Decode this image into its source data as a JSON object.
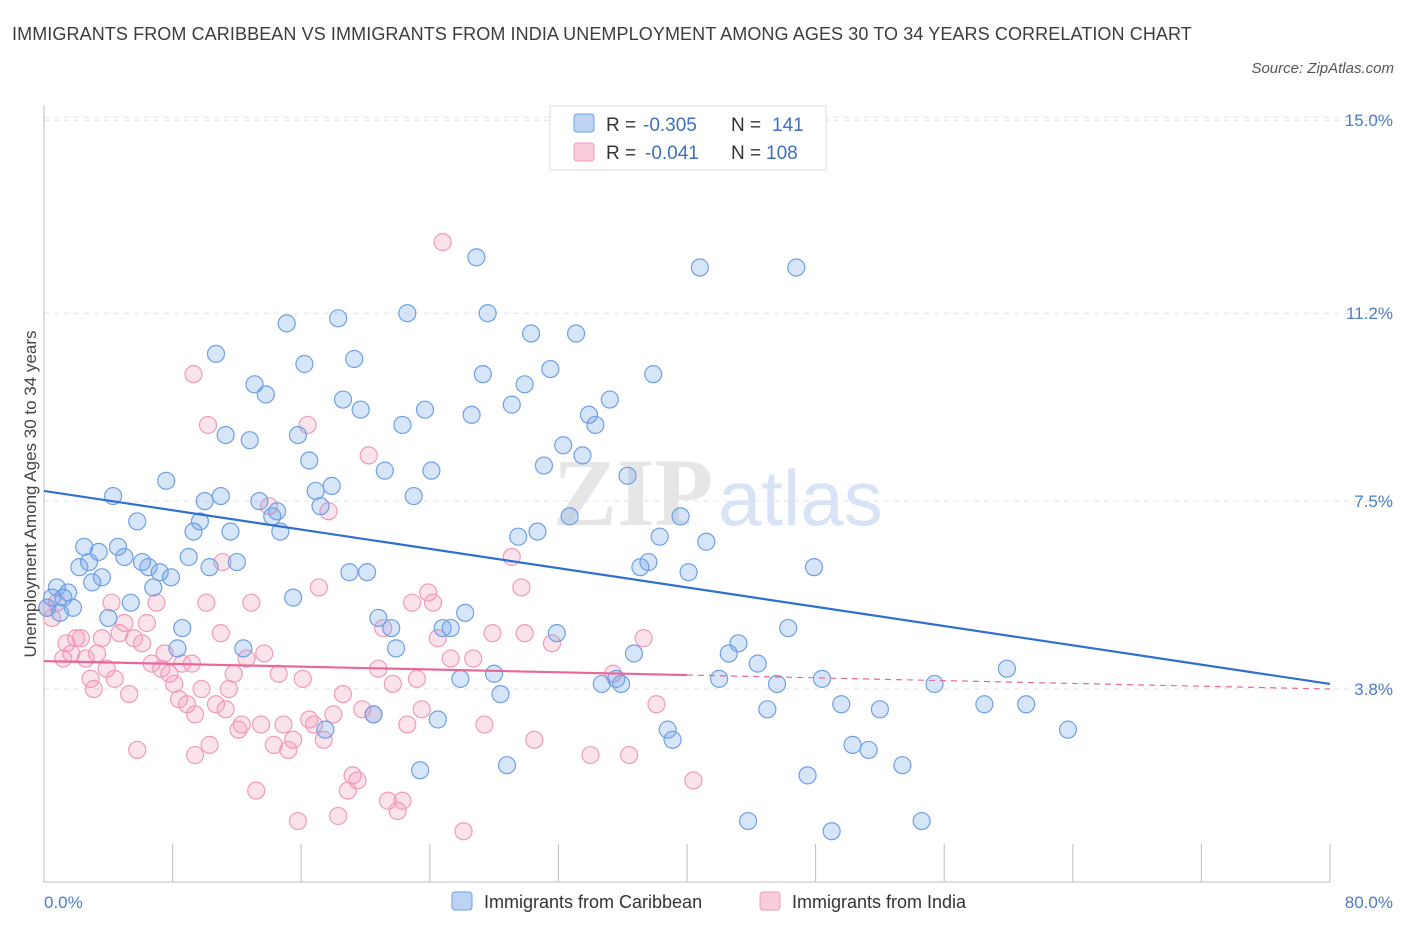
{
  "title": "IMMIGRANTS FROM CARIBBEAN VS IMMIGRANTS FROM INDIA UNEMPLOYMENT AMONG AGES 30 TO 34 YEARS CORRELATION CHART",
  "source": "Source: ZipAtlas.com",
  "watermark": {
    "zip": "ZIP",
    "atlas": "atlas"
  },
  "colors": {
    "caribbean": "#6ea0e6",
    "caribbean_line": "#2f6fd0",
    "india": "#f19ab9",
    "india_line": "#e8679a",
    "tick": "#4a7cc9"
  },
  "legend": {
    "rows": [
      {
        "r_label": "R =",
        "r_value": "-0.305",
        "n_label": "N =",
        "n_value": "141"
      },
      {
        "r_label": "R =",
        "r_value": "-0.041",
        "n_label": "N =",
        "n_value": "108"
      }
    ]
  },
  "chart_data": {
    "type": "scatter",
    "xlabel": "",
    "ylabel": "Unemployment Among Ages 30 to 34 years",
    "xlim": [
      0,
      80
    ],
    "ylim": [
      0,
      15.3
    ],
    "x_tick_labels": [
      "0.0%",
      "80.0%"
    ],
    "y_ticks": [
      3.8,
      7.5,
      11.2,
      15.0
    ],
    "y_tick_labels": [
      "3.8%",
      "7.5%",
      "11.2%",
      "15.0%"
    ],
    "grid": true,
    "series": [
      {
        "name": "Immigrants from Caribbean",
        "r": -0.305,
        "n": 141,
        "trend": {
          "x": [
            0,
            80
          ],
          "y": [
            7.7,
            3.9
          ]
        },
        "points": [
          [
            0.2,
            5.4
          ],
          [
            0.5,
            5.6
          ],
          [
            0.8,
            5.8
          ],
          [
            1.0,
            5.3
          ],
          [
            1.2,
            5.6
          ],
          [
            1.5,
            5.7
          ],
          [
            1.8,
            5.4
          ],
          [
            2.2,
            6.2
          ],
          [
            2.5,
            6.6
          ],
          [
            2.8,
            6.3
          ],
          [
            3.0,
            5.9
          ],
          [
            3.4,
            6.5
          ],
          [
            3.6,
            6.0
          ],
          [
            4.0,
            5.2
          ],
          [
            4.3,
            7.6
          ],
          [
            4.6,
            6.6
          ],
          [
            5.0,
            6.4
          ],
          [
            5.4,
            5.5
          ],
          [
            5.8,
            7.1
          ],
          [
            6.1,
            6.3
          ],
          [
            6.5,
            6.2
          ],
          [
            6.8,
            5.8
          ],
          [
            7.2,
            6.1
          ],
          [
            7.6,
            7.9
          ],
          [
            7.9,
            6.0
          ],
          [
            8.3,
            4.6
          ],
          [
            8.6,
            5.0
          ],
          [
            9.0,
            6.4
          ],
          [
            9.3,
            6.9
          ],
          [
            9.7,
            7.1
          ],
          [
            10.0,
            7.5
          ],
          [
            10.3,
            6.2
          ],
          [
            10.7,
            10.4
          ],
          [
            11.0,
            7.6
          ],
          [
            11.3,
            8.8
          ],
          [
            11.6,
            6.9
          ],
          [
            12.0,
            6.3
          ],
          [
            12.4,
            4.6
          ],
          [
            12.8,
            8.7
          ],
          [
            13.1,
            9.8
          ],
          [
            13.4,
            7.5
          ],
          [
            13.8,
            9.6
          ],
          [
            14.2,
            7.2
          ],
          [
            14.5,
            7.3
          ],
          [
            14.7,
            6.9
          ],
          [
            15.1,
            11.0
          ],
          [
            15.5,
            5.6
          ],
          [
            15.8,
            8.8
          ],
          [
            16.2,
            10.2
          ],
          [
            16.5,
            8.3
          ],
          [
            16.9,
            7.7
          ],
          [
            17.2,
            7.4
          ],
          [
            17.5,
            3.0
          ],
          [
            17.9,
            7.8
          ],
          [
            18.3,
            11.1
          ],
          [
            18.6,
            9.5
          ],
          [
            19.0,
            6.1
          ],
          [
            19.3,
            10.3
          ],
          [
            19.7,
            9.3
          ],
          [
            20.1,
            6.1
          ],
          [
            20.5,
            3.3
          ],
          [
            20.8,
            5.2
          ],
          [
            21.2,
            8.1
          ],
          [
            21.6,
            5.0
          ],
          [
            21.9,
            4.6
          ],
          [
            22.3,
            9.0
          ],
          [
            22.6,
            11.2
          ],
          [
            23.0,
            7.6
          ],
          [
            23.4,
            2.2
          ],
          [
            23.7,
            9.3
          ],
          [
            24.1,
            8.1
          ],
          [
            24.5,
            3.2
          ],
          [
            24.8,
            5.0
          ],
          [
            25.3,
            5.0
          ],
          [
            25.9,
            4.0
          ],
          [
            26.2,
            5.3
          ],
          [
            26.6,
            9.2
          ],
          [
            26.9,
            12.3
          ],
          [
            27.3,
            10.0
          ],
          [
            27.6,
            11.2
          ],
          [
            28.0,
            4.1
          ],
          [
            28.4,
            3.7
          ],
          [
            28.8,
            2.3
          ],
          [
            29.1,
            9.4
          ],
          [
            29.5,
            6.8
          ],
          [
            29.9,
            9.8
          ],
          [
            30.3,
            10.8
          ],
          [
            30.7,
            6.9
          ],
          [
            31.1,
            8.2
          ],
          [
            31.5,
            10.1
          ],
          [
            31.9,
            4.9
          ],
          [
            32.3,
            8.6
          ],
          [
            32.7,
            7.2
          ],
          [
            33.1,
            10.8
          ],
          [
            33.5,
            8.4
          ],
          [
            33.9,
            9.2
          ],
          [
            34.3,
            9.0
          ],
          [
            34.7,
            3.9
          ],
          [
            35.2,
            9.5
          ],
          [
            35.6,
            4.0
          ],
          [
            35.9,
            3.9
          ],
          [
            36.3,
            8.0
          ],
          [
            36.7,
            4.5
          ],
          [
            37.1,
            6.2
          ],
          [
            37.6,
            6.3
          ],
          [
            37.9,
            10.0
          ],
          [
            38.3,
            6.8
          ],
          [
            38.8,
            3.0
          ],
          [
            39.1,
            2.8
          ],
          [
            39.6,
            7.2
          ],
          [
            40.1,
            6.1
          ],
          [
            40.8,
            12.1
          ],
          [
            41.2,
            6.7
          ],
          [
            42.0,
            4.0
          ],
          [
            42.6,
            4.5
          ],
          [
            43.2,
            4.7
          ],
          [
            43.8,
            1.2
          ],
          [
            44.4,
            4.3
          ],
          [
            45.0,
            3.4
          ],
          [
            45.6,
            3.9
          ],
          [
            46.3,
            5.0
          ],
          [
            46.8,
            12.1
          ],
          [
            47.5,
            2.1
          ],
          [
            47.9,
            6.2
          ],
          [
            48.4,
            4.0
          ],
          [
            49.0,
            1.0
          ],
          [
            49.6,
            3.5
          ],
          [
            50.3,
            2.7
          ],
          [
            51.3,
            2.6
          ],
          [
            52.0,
            3.4
          ],
          [
            53.4,
            2.3
          ],
          [
            54.6,
            1.2
          ],
          [
            55.4,
            3.9
          ],
          [
            58.5,
            3.5
          ],
          [
            59.9,
            4.2
          ],
          [
            61.1,
            3.5
          ],
          [
            63.7,
            3.0
          ]
        ]
      },
      {
        "name": "Immigrants from India",
        "r": -0.041,
        "n": 108,
        "trend": {
          "x": [
            0,
            80
          ],
          "y": [
            4.35,
            3.8
          ]
        },
        "trend_solid_to_x": 40,
        "points": [
          [
            0.2,
            5.4
          ],
          [
            0.5,
            5.2
          ],
          [
            0.8,
            5.5
          ],
          [
            1.2,
            4.4
          ],
          [
            1.4,
            4.7
          ],
          [
            1.7,
            4.5
          ],
          [
            2.0,
            4.8
          ],
          [
            2.3,
            4.8
          ],
          [
            2.6,
            4.4
          ],
          [
            2.9,
            4.0
          ],
          [
            3.1,
            3.8
          ],
          [
            3.3,
            4.5
          ],
          [
            3.6,
            4.8
          ],
          [
            3.9,
            4.2
          ],
          [
            4.2,
            5.5
          ],
          [
            4.4,
            4.0
          ],
          [
            4.7,
            4.9
          ],
          [
            5.0,
            5.1
          ],
          [
            5.3,
            3.7
          ],
          [
            5.6,
            4.8
          ],
          [
            5.8,
            2.6
          ],
          [
            6.1,
            4.7
          ],
          [
            6.4,
            5.1
          ],
          [
            6.7,
            4.3
          ],
          [
            7.0,
            5.5
          ],
          [
            7.3,
            4.2
          ],
          [
            7.5,
            4.5
          ],
          [
            7.8,
            4.1
          ],
          [
            8.1,
            3.9
          ],
          [
            8.4,
            3.6
          ],
          [
            8.6,
            4.3
          ],
          [
            8.9,
            3.5
          ],
          [
            9.2,
            4.3
          ],
          [
            9.4,
            3.3
          ],
          [
            9.8,
            3.8
          ],
          [
            10.1,
            5.5
          ],
          [
            10.3,
            2.7
          ],
          [
            10.7,
            3.5
          ],
          [
            11.0,
            4.9
          ],
          [
            11.3,
            3.4
          ],
          [
            11.5,
            3.8
          ],
          [
            11.8,
            4.1
          ],
          [
            12.1,
            3.0
          ],
          [
            12.3,
            3.1
          ],
          [
            12.6,
            4.4
          ],
          [
            12.9,
            5.5
          ],
          [
            13.2,
            1.8
          ],
          [
            13.5,
            3.1
          ],
          [
            13.7,
            4.5
          ],
          [
            14.0,
            7.4
          ],
          [
            14.3,
            2.7
          ],
          [
            14.6,
            4.1
          ],
          [
            14.9,
            3.1
          ],
          [
            15.2,
            2.6
          ],
          [
            15.5,
            2.8
          ],
          [
            15.8,
            1.2
          ],
          [
            16.1,
            4.0
          ],
          [
            16.5,
            3.2
          ],
          [
            16.8,
            3.1
          ],
          [
            17.1,
            5.8
          ],
          [
            17.4,
            2.8
          ],
          [
            17.7,
            7.3
          ],
          [
            18.0,
            3.3
          ],
          [
            18.3,
            1.3
          ],
          [
            18.6,
            3.7
          ],
          [
            18.9,
            1.8
          ],
          [
            19.2,
            2.1
          ],
          [
            19.5,
            2.0
          ],
          [
            19.8,
            3.4
          ],
          [
            20.2,
            8.4
          ],
          [
            20.5,
            3.3
          ],
          [
            20.8,
            4.2
          ],
          [
            21.1,
            5.0
          ],
          [
            21.4,
            1.6
          ],
          [
            21.7,
            3.9
          ],
          [
            22.0,
            1.4
          ],
          [
            22.3,
            1.6
          ],
          [
            22.6,
            3.1
          ],
          [
            22.9,
            5.5
          ],
          [
            23.2,
            4.0
          ],
          [
            23.5,
            3.4
          ],
          [
            23.9,
            5.7
          ],
          [
            24.2,
            5.5
          ],
          [
            24.5,
            4.8
          ],
          [
            24.8,
            12.6
          ],
          [
            25.3,
            4.4
          ],
          [
            26.1,
            1.0
          ],
          [
            26.7,
            4.4
          ],
          [
            27.4,
            3.1
          ],
          [
            27.9,
            4.9
          ],
          [
            29.1,
            6.4
          ],
          [
            29.7,
            5.8
          ],
          [
            29.9,
            4.9
          ],
          [
            30.5,
            2.8
          ],
          [
            31.6,
            4.7
          ],
          [
            34.0,
            2.5
          ],
          [
            35.4,
            4.1
          ],
          [
            36.4,
            2.5
          ],
          [
            37.3,
            4.8
          ],
          [
            38.1,
            3.5
          ],
          [
            40.4,
            2.0
          ],
          [
            9.3,
            10.0
          ],
          [
            10.2,
            9.0
          ],
          [
            11.1,
            6.3
          ],
          [
            9.4,
            2.5
          ],
          [
            16.4,
            9.0
          ]
        ]
      }
    ]
  }
}
